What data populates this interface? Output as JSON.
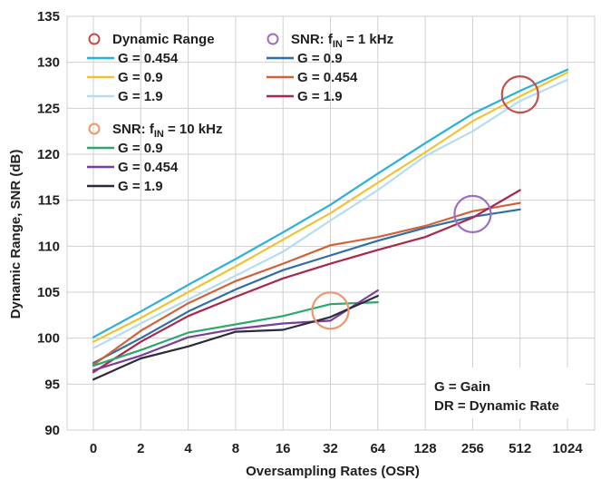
{
  "chart_data": {
    "type": "line",
    "xlabel": "Oversampling Rates (OSR)",
    "ylabel": "Dynamic Range, SNR (dB)",
    "categories": [
      "0",
      "2",
      "4",
      "8",
      "16",
      "32",
      "64",
      "128",
      "256",
      "512",
      "1024"
    ],
    "yticks": [
      "90",
      "95",
      "100",
      "105",
      "110",
      "115",
      "120",
      "125",
      "130",
      "135"
    ],
    "ylim": [
      90,
      135
    ],
    "grid": true,
    "groups": [
      {
        "title": "Dynamic Range",
        "marker_color": "#c0504d",
        "series": [
          {
            "name": "G = 0.454",
            "color": "#2bb0d8",
            "x": [
              0,
              1,
              2,
              3,
              4,
              5,
              6,
              7,
              8,
              9,
              10
            ],
            "values": [
              100.1,
              102.9,
              105.8,
              108.6,
              111.5,
              114.5,
              117.9,
              121.2,
              124.4,
              126.9,
              129.2
            ]
          },
          {
            "name": "G = 0.9",
            "color": "#f2c233",
            "x": [
              0,
              1,
              2,
              3,
              4,
              5,
              6,
              7,
              8,
              9,
              10
            ],
            "values": [
              99.6,
              102.2,
              105.0,
              107.8,
              110.7,
              113.6,
              116.9,
              120.2,
              123.6,
              126.3,
              128.9
            ]
          },
          {
            "name": "G = 1.9",
            "color": "#b6dcf0",
            "x": [
              0,
              1,
              2,
              3,
              4,
              5,
              6,
              7,
              8,
              9,
              10
            ],
            "values": [
              98.9,
              101.6,
              104.2,
              106.8,
              109.4,
              112.8,
              116.1,
              119.8,
              122.5,
              125.8,
              128.1
            ]
          }
        ]
      },
      {
        "title": "SNR: f",
        "title_sub": "IN",
        "title_rest": " = 1 kHz",
        "marker_color": "#9b6fbf",
        "series": [
          {
            "name": "G = 0.9",
            "color": "#2f6fa7",
            "x": [
              0,
              1,
              2,
              3,
              4,
              5,
              6,
              7,
              8,
              9
            ],
            "values": [
              97.3,
              100.0,
              102.9,
              105.3,
              107.4,
              109.0,
              110.6,
              112.0,
              113.2,
              114.0
            ]
          },
          {
            "name": "G = 0.454",
            "color": "#d0623a",
            "x": [
              0,
              1,
              2,
              3,
              4,
              5,
              6,
              7,
              8,
              9
            ],
            "values": [
              97.1,
              100.8,
              103.8,
              106.2,
              108.1,
              110.1,
              111.0,
              112.2,
              113.8,
              114.7
            ]
          },
          {
            "name": "G = 1.9",
            "color": "#a8284b",
            "x": [
              0,
              1,
              2,
              3,
              4,
              5,
              6,
              7,
              8,
              9
            ],
            "values": [
              96.3,
              99.6,
              102.4,
              104.5,
              106.5,
              108.1,
              109.6,
              111.0,
              113.1,
              116.1
            ]
          }
        ]
      },
      {
        "title": "SNR: f",
        "title_sub": "IN",
        "title_rest": " = 10 kHz",
        "marker_color": "#f0956a",
        "series": [
          {
            "name": "G = 0.9",
            "color": "#2aa86e",
            "x": [
              0,
              1,
              2,
              3,
              4,
              5,
              6
            ],
            "values": [
              97.0,
              98.7,
              100.6,
              101.5,
              102.4,
              103.7,
              103.9
            ]
          },
          {
            "name": "G = 0.454",
            "color": "#7a3f98",
            "x": [
              0,
              1,
              2,
              3,
              4,
              5,
              6
            ],
            "values": [
              96.5,
              98.1,
              100.1,
              101.0,
              101.6,
              101.9,
              105.2
            ]
          },
          {
            "name": "G = 1.9",
            "color": "#2c2a3c",
            "x": [
              0,
              1,
              2,
              3,
              4,
              5,
              6
            ],
            "values": [
              95.5,
              97.8,
              99.1,
              100.7,
              100.9,
              102.3,
              104.6
            ]
          }
        ]
      }
    ],
    "highlights": [
      {
        "color": "#c0504d",
        "x": 9,
        "y": 126.5
      },
      {
        "color": "#9b6fbf",
        "x": 8,
        "y": 113.5
      },
      {
        "color": "#f0956a",
        "x": 5,
        "y": 103.0
      }
    ],
    "notes": [
      "G = Gain",
      "DR = Dynamic Rate"
    ]
  }
}
